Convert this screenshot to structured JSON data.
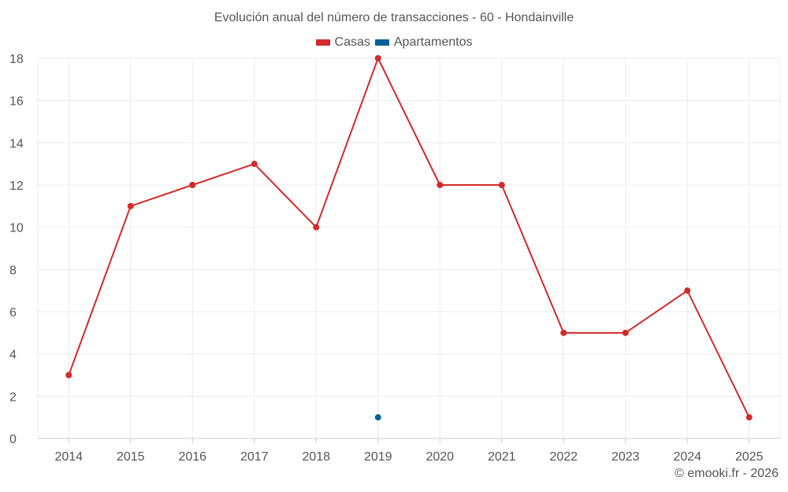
{
  "chart_data": {
    "type": "line",
    "title": "Evolución anual del número de transacciones - 60 - Hondainville",
    "xlabel": "",
    "ylabel": "",
    "categories": [
      "2014",
      "2015",
      "2016",
      "2017",
      "2018",
      "2019",
      "2020",
      "2021",
      "2022",
      "2023",
      "2024",
      "2025"
    ],
    "ylim": [
      0,
      18
    ],
    "yticks": [
      0,
      2,
      4,
      6,
      8,
      10,
      12,
      14,
      16,
      18
    ],
    "grid": true,
    "legend_position": "top-center",
    "series": [
      {
        "name": "Casas",
        "color": "#d32a2a",
        "values": [
          3,
          11,
          12,
          13,
          10,
          18,
          12,
          12,
          5,
          5,
          7,
          1
        ]
      },
      {
        "name": "Apartamentos",
        "color": "#0a5f96",
        "values": [
          null,
          null,
          null,
          null,
          null,
          1,
          null,
          null,
          null,
          null,
          null,
          null
        ]
      }
    ]
  },
  "watermark": "© emooki.fr - 2026"
}
